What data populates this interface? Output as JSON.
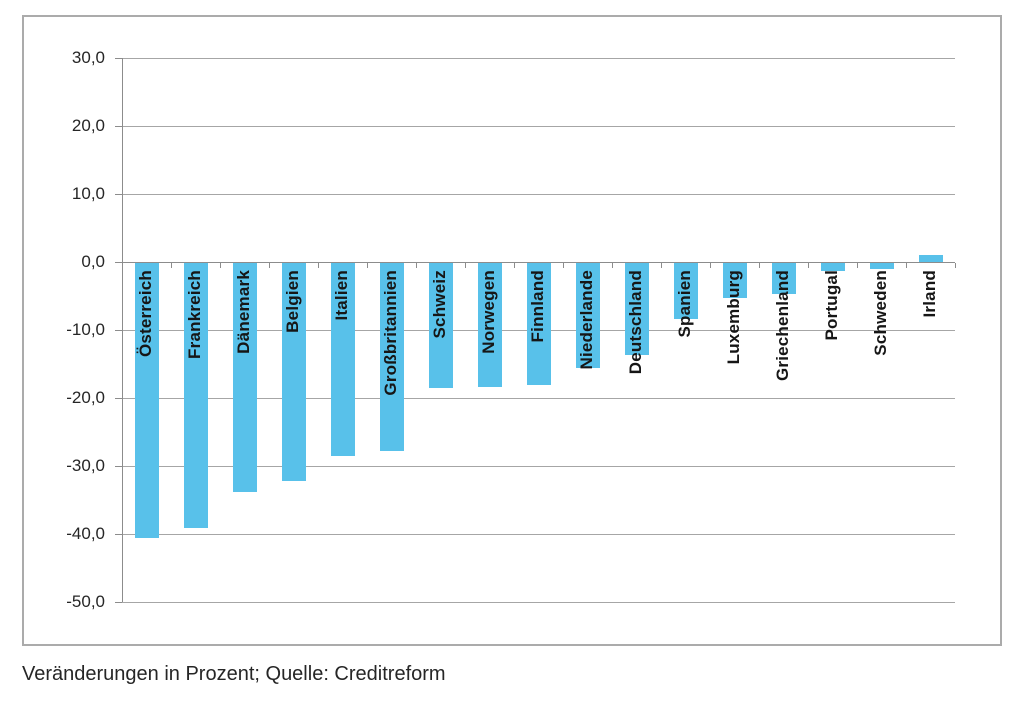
{
  "caption": "Veränderungen in Prozent; Quelle: Creditreform",
  "chart_data": {
    "type": "bar",
    "title": "",
    "xlabel": "",
    "ylabel": "",
    "categories": [
      "Österreich",
      "Frankreich",
      "Dänemark",
      "Belgien",
      "Italien",
      "Großbritannien",
      "Schweiz",
      "Norwegen",
      "Finnland",
      "Niederlande",
      "Deutschland",
      "Spanien",
      "Luxemburg",
      "Griechenland",
      "Portugal",
      "Schweden",
      "Irland"
    ],
    "values": [
      -40.5,
      -39.0,
      -33.7,
      -32.1,
      -28.4,
      -27.6,
      -18.4,
      -18.2,
      -17.9,
      -15.5,
      -13.6,
      -8.2,
      -5.1,
      -4.5,
      -1.2,
      -0.9,
      1.1
    ],
    "ylim": [
      -50,
      30
    ],
    "ytick_step": 10,
    "ytick_labels": [
      "30,0",
      "20,0",
      "10,0",
      "0,0",
      "-10,0",
      "-20,0",
      "-30,0",
      "-40,0",
      "-50,0"
    ],
    "grid": true,
    "legend": false,
    "decimal_separator": ",",
    "bar_color": "#58c1ea",
    "grid_color": "#a6a6a6",
    "axis_color": "#8c8c8c",
    "category_label_color": "#161616",
    "tick_label_color": "#262626"
  }
}
